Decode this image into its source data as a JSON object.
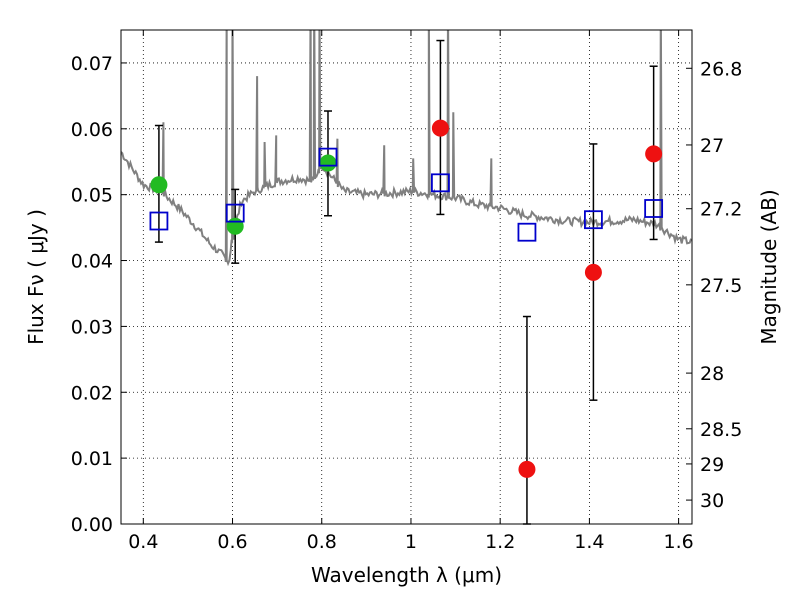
{
  "chart_data": {
    "type": "scatter",
    "xlabel": "Wavelength  λ (μm)",
    "ylabel_left": "Flux  Fν  ( μJy )",
    "ylabel_right": "Magnitude (AB)",
    "xlim": [
      0.35,
      1.63
    ],
    "ylim": [
      0.0,
      0.075
    ],
    "grid": true,
    "x_ticks": [
      0.4,
      0.6,
      0.8,
      1.0,
      1.2,
      1.4,
      1.6
    ],
    "x_tick_labels": [
      "0.4",
      "0.6",
      "0.8",
      "1",
      "1.2",
      "1.4",
      "1.6"
    ],
    "y_ticks": [
      0.0,
      0.01,
      0.02,
      0.03,
      0.04,
      0.05,
      0.06,
      0.07
    ],
    "y_tick_labels": [
      "0.00",
      "0.01",
      "0.02",
      "0.03",
      "0.04",
      "0.05",
      "0.06",
      "0.07"
    ],
    "right_ticks": [
      {
        "mag": 26.8,
        "label": "26.8"
      },
      {
        "mag": 27.0,
        "label": "27"
      },
      {
        "mag": 27.2,
        "label": "27.2"
      },
      {
        "mag": 27.5,
        "label": "27.5"
      },
      {
        "mag": 28.0,
        "label": "28"
      },
      {
        "mag": 28.5,
        "label": "28.5"
      },
      {
        "mag": 29.0,
        "label": "29"
      },
      {
        "mag": 30.0,
        "label": "30"
      }
    ],
    "series": [
      {
        "marker": "circle",
        "color": "#22bb22",
        "points": [
          {
            "x": 0.435,
            "y": 0.0515,
            "err_hi": 0.0605,
            "err_lo": 0.0428
          },
          {
            "x": 0.606,
            "y": 0.0452,
            "err_hi": 0.0508,
            "err_lo": 0.0396
          },
          {
            "x": 0.814,
            "y": 0.0548,
            "err_hi": 0.0627,
            "err_lo": 0.0468
          }
        ]
      },
      {
        "marker": "circle",
        "color": "#ee1111",
        "points": [
          {
            "x": 1.066,
            "y": 0.0601,
            "err_hi": 0.0734,
            "err_lo": 0.047
          },
          {
            "x": 1.26,
            "y": 0.0083,
            "err_hi": 0.0315,
            "err_lo": 0.0
          },
          {
            "x": 1.409,
            "y": 0.0382,
            "err_hi": 0.0577,
            "err_lo": 0.0188
          },
          {
            "x": 1.544,
            "y": 0.0562,
            "err_hi": 0.0695,
            "err_lo": 0.0432
          }
        ]
      },
      {
        "marker": "open-square",
        "color": "#0000cc",
        "points": [
          {
            "x": 0.435,
            "y": 0.046
          },
          {
            "x": 0.606,
            "y": 0.0472
          },
          {
            "x": 0.814,
            "y": 0.0557
          },
          {
            "x": 1.066,
            "y": 0.0518
          },
          {
            "x": 1.26,
            "y": 0.0443
          },
          {
            "x": 1.409,
            "y": 0.0462
          },
          {
            "x": 1.544,
            "y": 0.0479
          }
        ]
      },
      {
        "marker": "line",
        "color": "#808080",
        "continuum": [
          [
            0.35,
            0.0565
          ],
          [
            0.37,
            0.0545
          ],
          [
            0.4,
            0.0515
          ],
          [
            0.44,
            0.0505
          ],
          [
            0.48,
            0.048
          ],
          [
            0.52,
            0.045
          ],
          [
            0.55,
            0.0425
          ],
          [
            0.575,
            0.041
          ],
          [
            0.59,
            0.0395
          ],
          [
            0.605,
            0.045
          ],
          [
            0.62,
            0.049
          ],
          [
            0.65,
            0.0505
          ],
          [
            0.7,
            0.052
          ],
          [
            0.75,
            0.0525
          ],
          [
            0.78,
            0.052
          ],
          [
            0.8,
            0.0545
          ],
          [
            0.85,
            0.0505
          ],
          [
            0.9,
            0.05
          ],
          [
            0.95,
            0.0502
          ],
          [
            1.0,
            0.0505
          ],
          [
            1.05,
            0.05
          ],
          [
            1.1,
            0.0495
          ],
          [
            1.15,
            0.0485
          ],
          [
            1.2,
            0.048
          ],
          [
            1.25,
            0.047
          ],
          [
            1.3,
            0.0465
          ],
          [
            1.35,
            0.046
          ],
          [
            1.4,
            0.0458
          ],
          [
            1.45,
            0.046
          ],
          [
            1.5,
            0.0462
          ],
          [
            1.55,
            0.0455
          ],
          [
            1.6,
            0.0432
          ],
          [
            1.63,
            0.0428
          ]
        ],
        "emission_lines": [
          {
            "x": 0.445,
            "peak": 0.061
          },
          {
            "x": 0.587,
            "peak": 0.08
          },
          {
            "x": 0.6,
            "peak": 0.08
          },
          {
            "x": 0.655,
            "peak": 0.068
          },
          {
            "x": 0.672,
            "peak": 0.058
          },
          {
            "x": 0.698,
            "peak": 0.059
          },
          {
            "x": 0.775,
            "peak": 0.08
          },
          {
            "x": 0.783,
            "peak": 0.08
          },
          {
            "x": 0.795,
            "peak": 0.08
          },
          {
            "x": 0.835,
            "peak": 0.0585
          },
          {
            "x": 0.94,
            "peak": 0.0575
          },
          {
            "x": 1.005,
            "peak": 0.0555
          },
          {
            "x": 1.04,
            "peak": 0.08
          },
          {
            "x": 1.083,
            "peak": 0.08
          },
          {
            "x": 1.095,
            "peak": 0.0625
          },
          {
            "x": 1.18,
            "peak": 0.0555
          },
          {
            "x": 1.56,
            "peak": 0.08
          }
        ]
      }
    ]
  }
}
